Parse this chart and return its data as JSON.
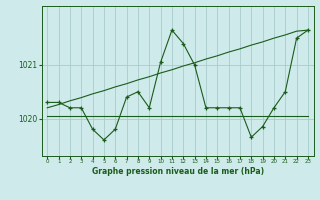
{
  "title": "Graphe pression niveau de la mer (hPa)",
  "bg_color": "#ceeaea",
  "grid_color": "#aacccc",
  "line_color": "#1a5c1a",
  "hours": [
    0,
    1,
    2,
    3,
    4,
    5,
    6,
    7,
    8,
    9,
    10,
    11,
    12,
    13,
    14,
    15,
    16,
    17,
    18,
    19,
    20,
    21,
    22,
    23
  ],
  "series_jagged": [
    1020.3,
    1020.3,
    1020.2,
    1020.2,
    1019.8,
    1019.6,
    1019.8,
    1020.4,
    1020.5,
    1020.2,
    1021.05,
    1021.65,
    1021.4,
    1021.0,
    1020.2,
    1020.2,
    1020.2,
    1020.2,
    1019.65,
    1019.85,
    1020.2,
    1020.5,
    1021.5,
    1021.65
  ],
  "trend_line": [
    1020.2,
    1020.26,
    1020.33,
    1020.39,
    1020.46,
    1020.52,
    1020.59,
    1020.65,
    1020.72,
    1020.78,
    1020.85,
    1020.91,
    1020.98,
    1021.04,
    1021.11,
    1021.17,
    1021.24,
    1021.3,
    1021.37,
    1021.43,
    1021.5,
    1021.56,
    1021.63,
    1021.65
  ],
  "flat_line": [
    1020.05,
    1020.05,
    1020.05,
    1020.05,
    1020.05,
    1020.05,
    1020.05,
    1020.05,
    1020.05,
    1020.05,
    1020.05,
    1020.05,
    1020.05,
    1020.05,
    1020.05,
    1020.05,
    1020.05,
    1020.05,
    1020.05,
    1020.05,
    1020.05,
    1020.05,
    1020.05,
    1020.05
  ],
  "ylim_min": 1019.3,
  "ylim_max": 1022.1,
  "ytick_positions": [
    1020,
    1021
  ],
  "ytick_labels": [
    "1020",
    "1021"
  ],
  "xticks": [
    0,
    1,
    2,
    3,
    4,
    5,
    6,
    7,
    8,
    9,
    10,
    11,
    12,
    13,
    14,
    15,
    16,
    17,
    18,
    19,
    20,
    21,
    22,
    23
  ],
  "figsize": [
    3.2,
    2.0
  ],
  "dpi": 100
}
